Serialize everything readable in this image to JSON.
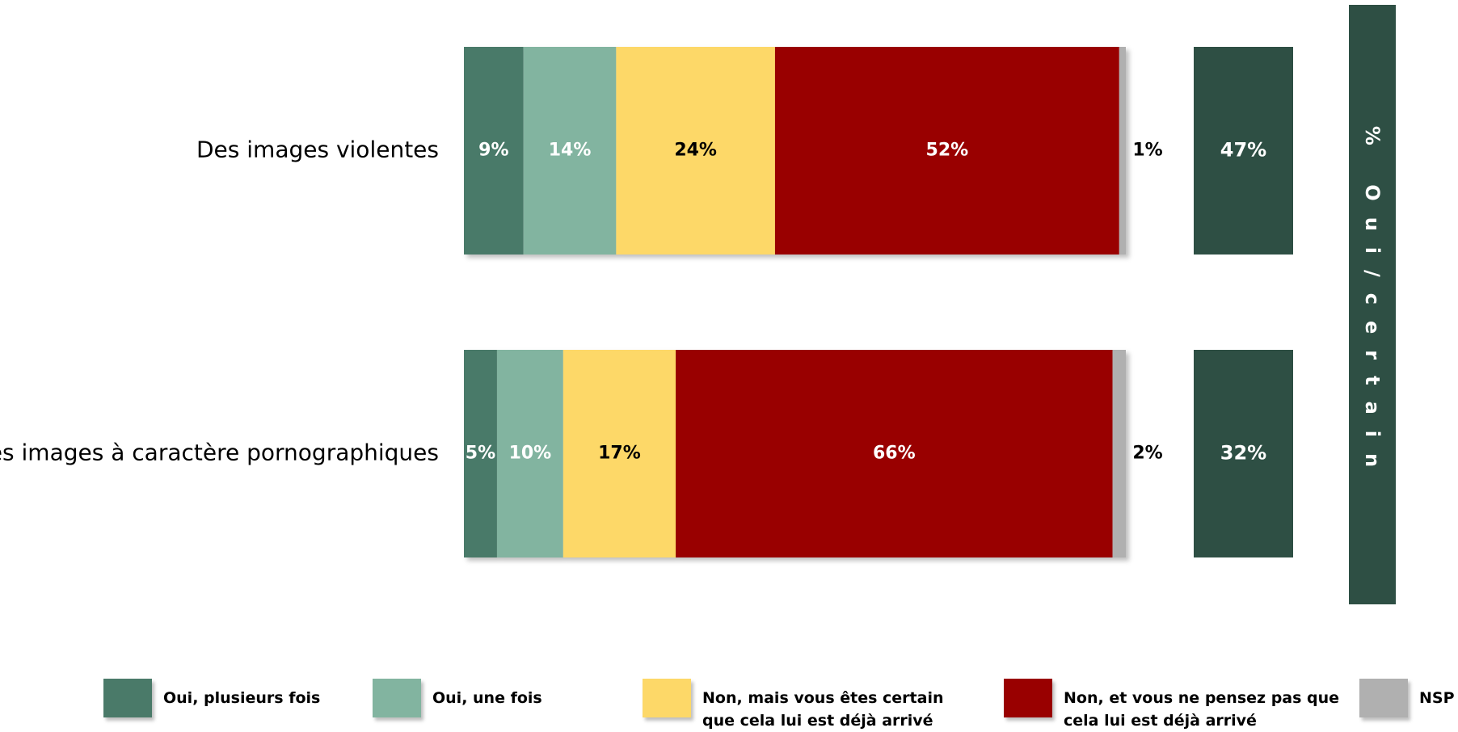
{
  "chart_data": {
    "type": "bar",
    "orientation": "horizontal",
    "stacked": true,
    "categories": [
      "Des images violentes",
      "Des images à caractère pornographiques"
    ],
    "series": [
      {
        "name": "Oui, plusieurs fois",
        "color": "#4a7a69",
        "label_color": "#ffffff",
        "values": [
          9,
          5
        ]
      },
      {
        "name": "Oui, une fois",
        "color": "#82b4a0",
        "label_color": "#ffffff",
        "values": [
          14,
          10
        ]
      },
      {
        "name": "Non, mais vous êtes certain que cela lui est déjà arrivé",
        "color": "#fdd868",
        "label_color": "#000000",
        "values": [
          24,
          17
        ]
      },
      {
        "name": "Non, et vous ne pensez pas que cela lui est déjà arrivé",
        "color": "#990000",
        "label_color": "#ffffff",
        "values": [
          52,
          66
        ]
      },
      {
        "name": "NSP",
        "color": "#b0b0b0",
        "label_color": "#000000",
        "values": [
          1,
          2
        ]
      }
    ],
    "value_labels": [
      [
        "9%",
        "14%",
        "24%",
        "52%",
        "1%"
      ],
      [
        "5%",
        "10%",
        "17%",
        "66%",
        "2%"
      ]
    ],
    "summary": {
      "title": "% Oui/certain",
      "color": "#2e4f44",
      "values": [
        47,
        32
      ],
      "labels": [
        "47%",
        "32%"
      ]
    },
    "xlim": [
      0,
      100
    ],
    "grid": false,
    "legend_position": "bottom"
  },
  "legend": [
    {
      "line1": "Oui, plusieurs fois",
      "line2": "",
      "color": "#4a7a69"
    },
    {
      "line1": "Oui, une fois",
      "line2": "",
      "color": "#82b4a0"
    },
    {
      "line1": "Non, mais vous êtes certain",
      "line2": "que cela lui est déjà arrivé",
      "color": "#fdd868"
    },
    {
      "line1": "Non, et vous ne pensez pas que",
      "line2": "cela lui est déjà arrivé",
      "color": "#990000"
    },
    {
      "line1": "NSP",
      "line2": "",
      "color": "#b0b0b0"
    }
  ]
}
